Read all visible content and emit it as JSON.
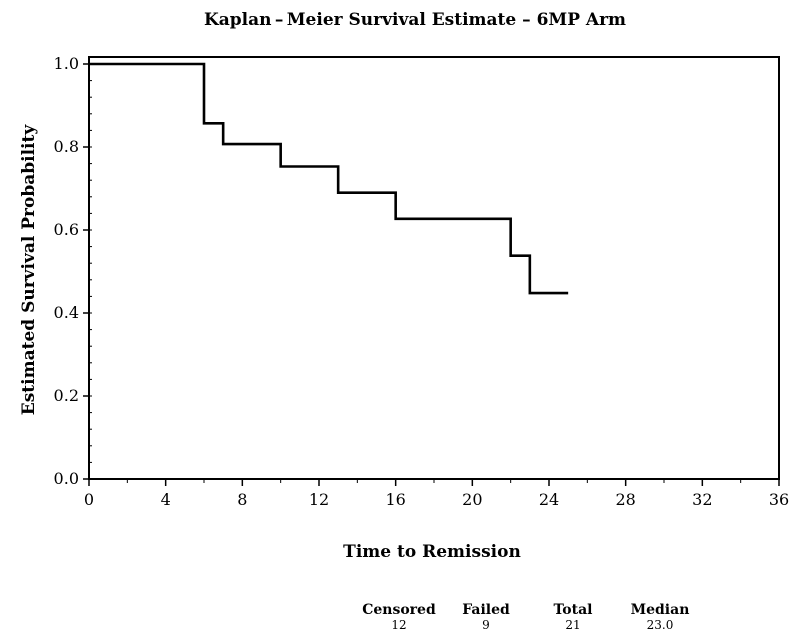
{
  "chart_data": {
    "type": "line",
    "step": true,
    "title": "Kaplan – Meier  Survival  Estimate  –  6MP  Arm",
    "xlabel": "Time  to  Remission",
    "ylabel": "Estimated  Survival  Probability",
    "xlim": [
      0,
      36
    ],
    "ylim": [
      0,
      1
    ],
    "x_ticks": [
      0,
      4,
      8,
      12,
      16,
      20,
      24,
      28,
      32,
      36
    ],
    "y_ticks": [
      "0.0",
      "0.2",
      "0.4",
      "0.6",
      "0.8",
      "1.0"
    ],
    "grid": false,
    "line_color": "#000000",
    "series": [
      {
        "x": [
          0,
          6,
          7,
          10,
          13,
          16,
          22,
          23,
          25
        ],
        "y": [
          1.0,
          0.857,
          0.807,
          0.753,
          0.69,
          0.627,
          0.538,
          0.448,
          0.448
        ]
      }
    ],
    "summary": {
      "headers": [
        "Censored",
        "Failed",
        "Total",
        "Median"
      ],
      "values": [
        "12",
        "9",
        "21",
        "23.0"
      ]
    }
  }
}
